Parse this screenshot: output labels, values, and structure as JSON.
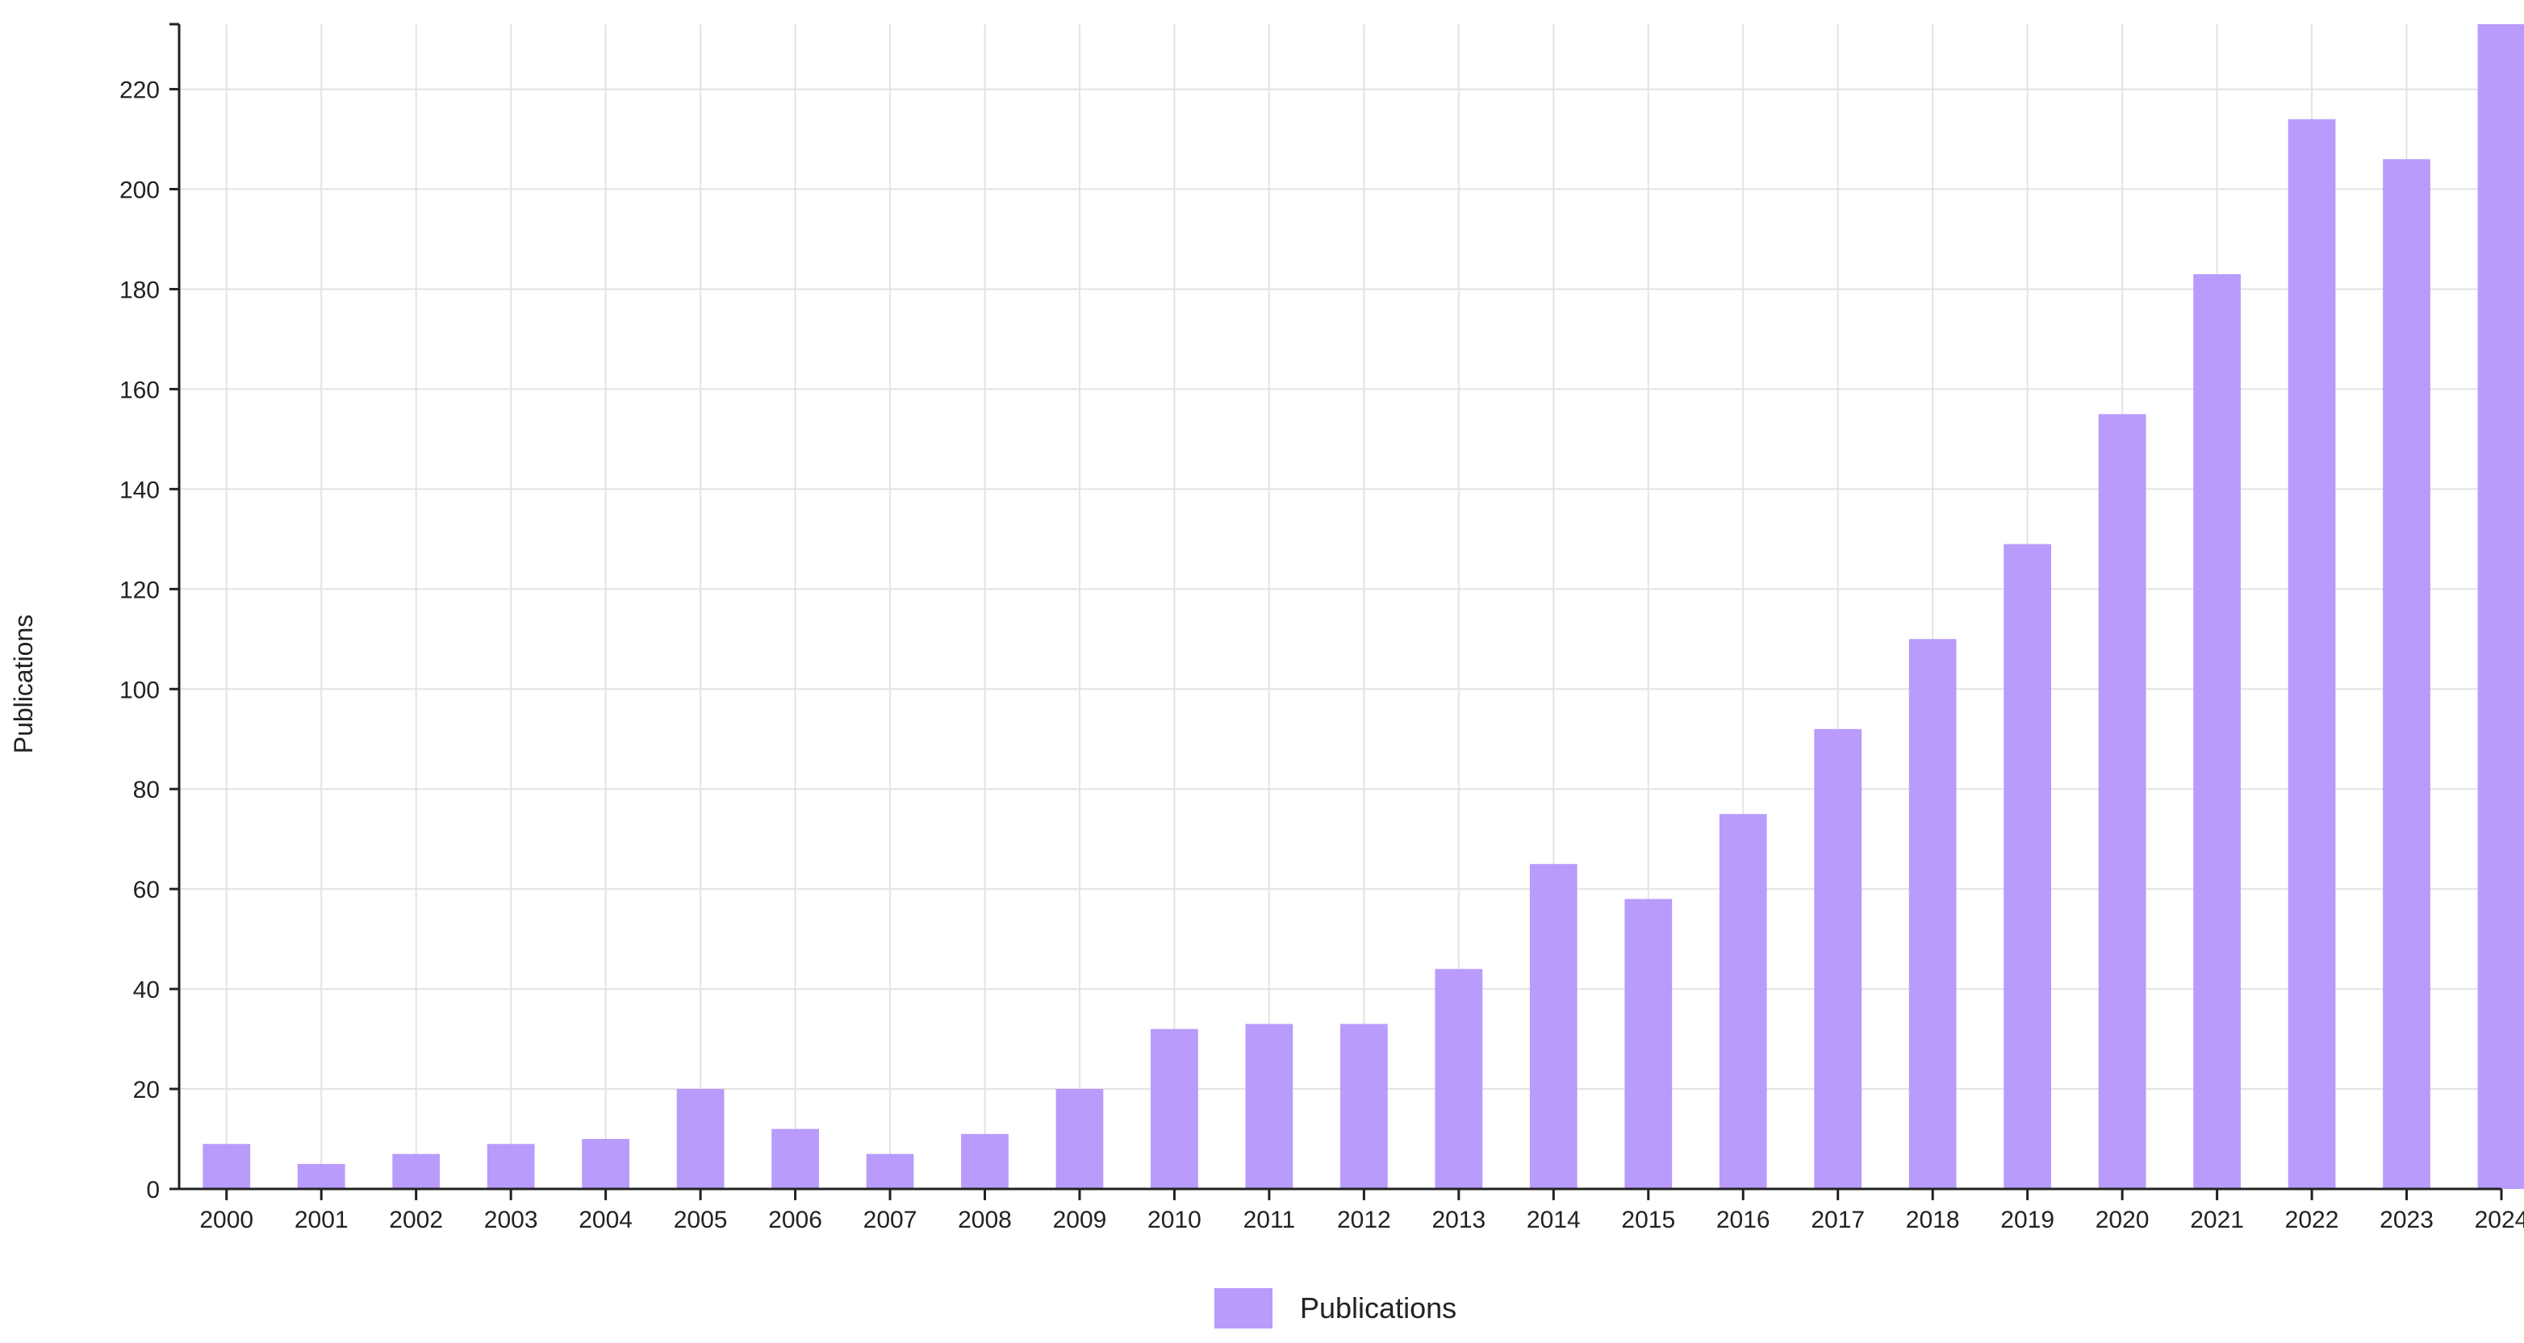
{
  "chart_data": {
    "type": "bar",
    "title": "",
    "xlabel": "",
    "ylabel": "Publications",
    "ylim": [
      0,
      233
    ],
    "yticks": [
      0,
      20,
      40,
      60,
      80,
      100,
      120,
      140,
      160,
      180,
      200,
      220
    ],
    "grid": true,
    "legend_position": "bottom-center",
    "categories": [
      "2000",
      "2001",
      "2002",
      "2003",
      "2004",
      "2005",
      "2006",
      "2007",
      "2008",
      "2009",
      "2010",
      "2011",
      "2012",
      "2013",
      "2014",
      "2015",
      "2016",
      "2017",
      "2018",
      "2019",
      "2020",
      "2021",
      "2022",
      "2023",
      "2024"
    ],
    "series": [
      {
        "name": "Publications",
        "color": "#b89bfb",
        "values": [
          9,
          5,
          7,
          9,
          10,
          20,
          12,
          7,
          11,
          20,
          32,
          33,
          33,
          44,
          65,
          58,
          75,
          92,
          110,
          129,
          155,
          183,
          214,
          206,
          233
        ]
      }
    ]
  }
}
